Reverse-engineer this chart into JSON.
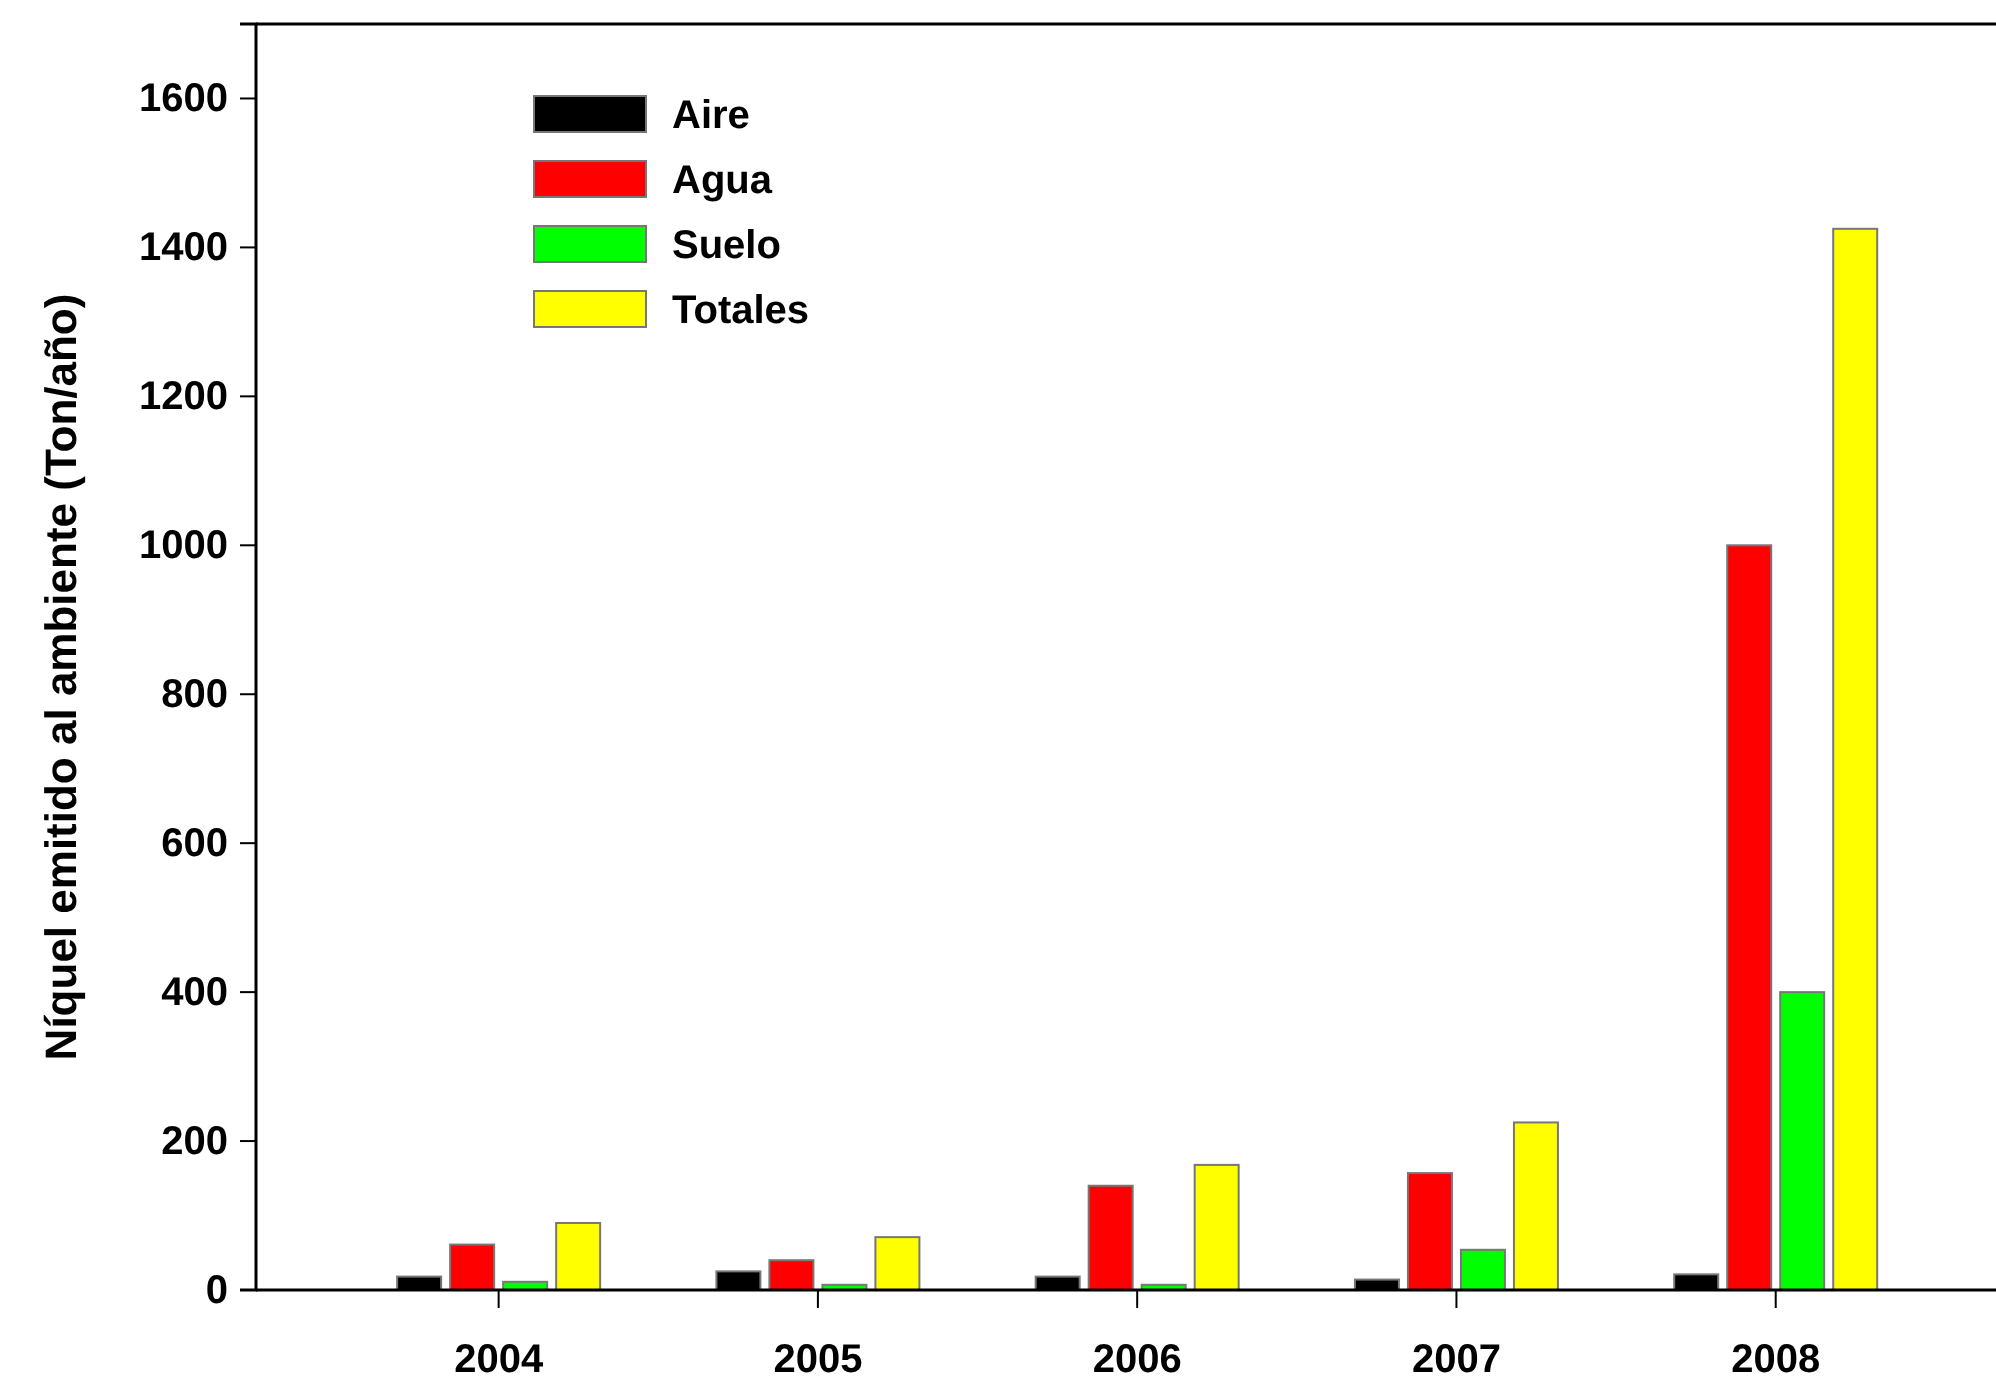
{
  "chart_data": {
    "type": "bar",
    "ylabel": "Níquel emitido al ambiente (Ton/año)",
    "categories": [
      "2004",
      "2005",
      "2006",
      "2007",
      "2008"
    ],
    "series": [
      {
        "name": "Aire",
        "color": "#000000",
        "values": [
          18,
          25,
          18,
          14,
          21
        ]
      },
      {
        "name": "Agua",
        "color": "#ff0000",
        "values": [
          61,
          40,
          140,
          157,
          1000
        ]
      },
      {
        "name": "Suelo",
        "color": "#00ff00",
        "values": [
          11,
          7,
          7,
          54,
          400
        ]
      },
      {
        "name": "Totales",
        "color": "#ffff00",
        "values": [
          90,
          71,
          168,
          225,
          1425
        ]
      }
    ],
    "ylim": [
      0,
      1700
    ],
    "yticks": [
      0,
      200,
      400,
      600,
      800,
      1000,
      1200,
      1400,
      1600
    ],
    "grid": false,
    "legend": "top left"
  }
}
